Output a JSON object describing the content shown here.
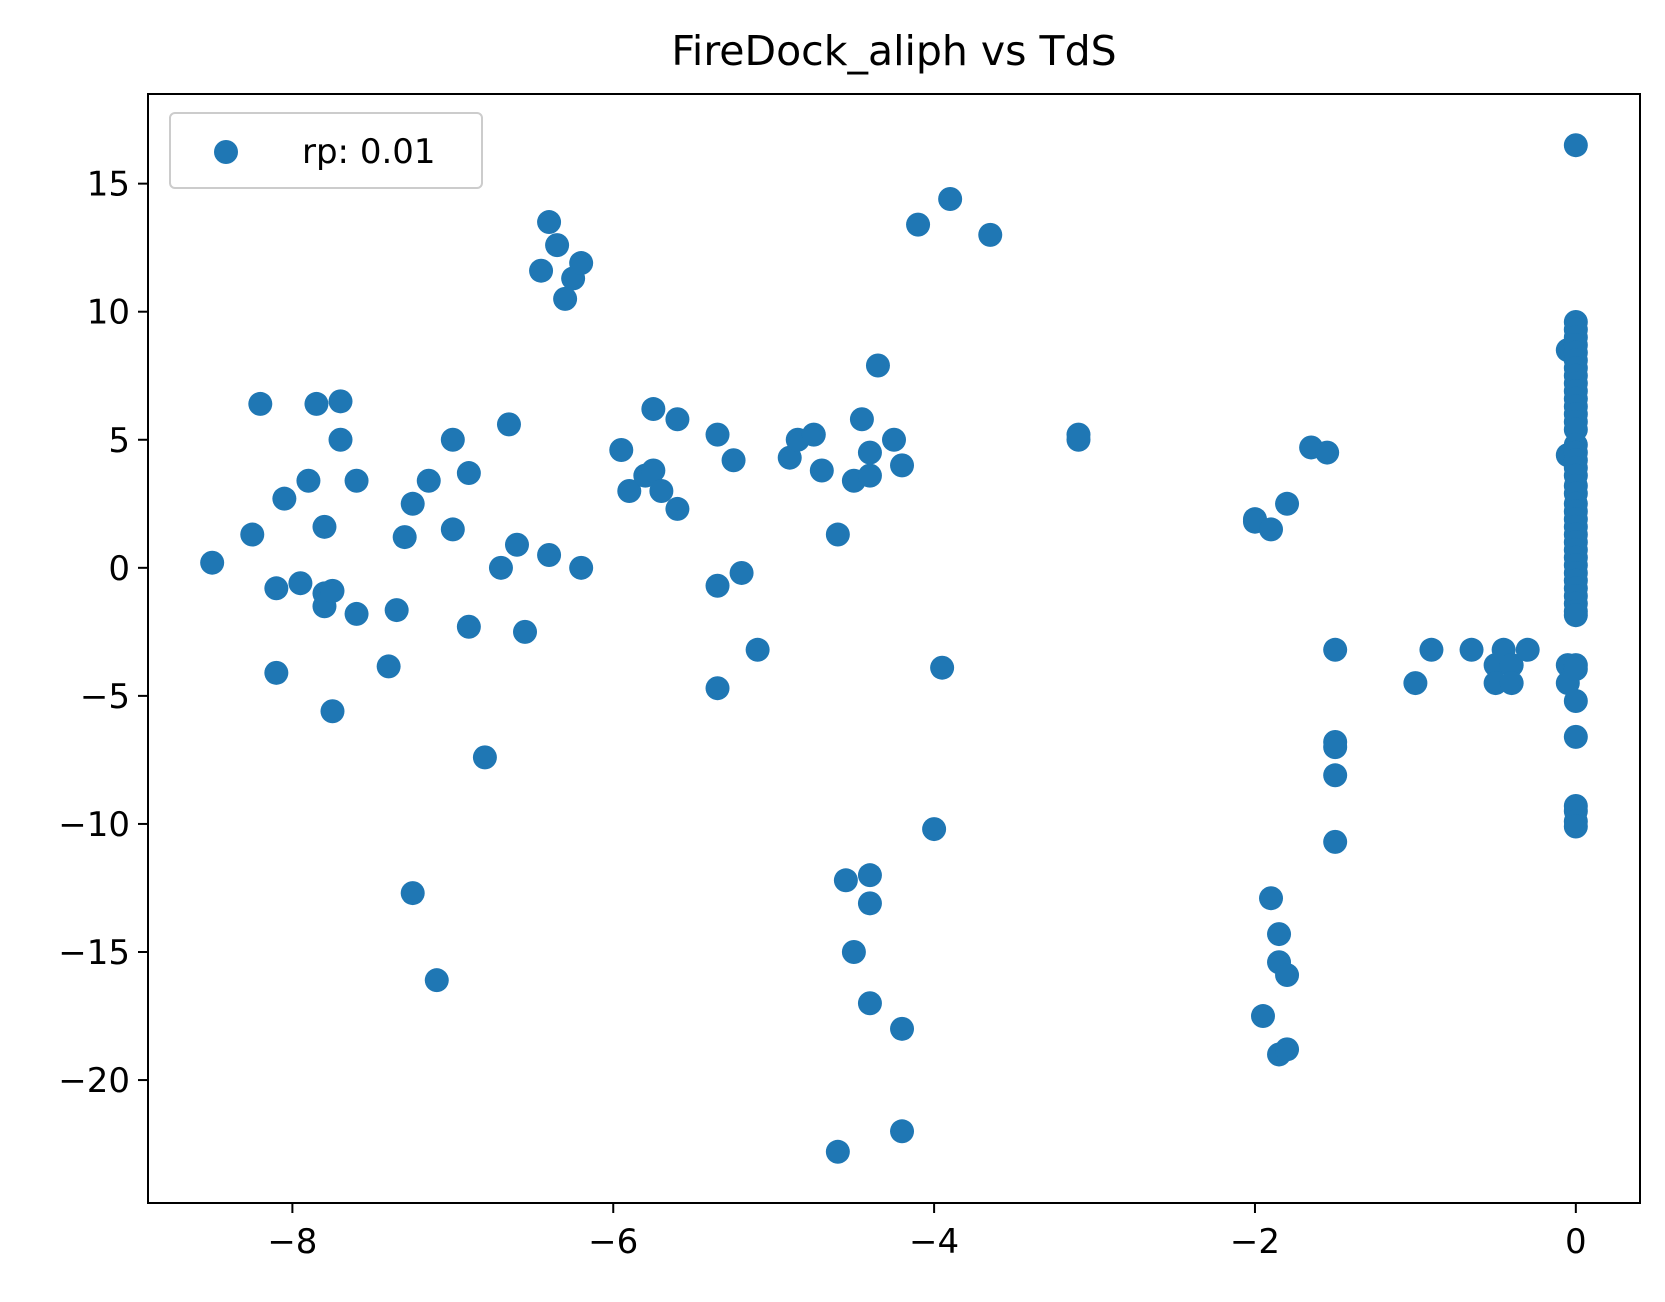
{
  "chart_data": {
    "type": "scatter",
    "title": "FireDock_aliph vs TdS",
    "xlabel": "",
    "ylabel": "",
    "xlim": [
      -8.9,
      0.4
    ],
    "ylim": [
      -24.8,
      18.5
    ],
    "x_ticks": [
      -8,
      -6,
      -4,
      -2,
      0
    ],
    "x_tick_labels": [
      "−8",
      "−6",
      "−4",
      "−2",
      "0"
    ],
    "y_ticks": [
      -20,
      -15,
      -10,
      -5,
      0,
      5,
      10,
      15
    ],
    "y_tick_labels": [
      "−20",
      "−15",
      "−10",
      "−5",
      "0",
      "5",
      "10",
      "15"
    ],
    "grid": false,
    "legend": {
      "position": "top-left",
      "label": "rp: 0.01"
    },
    "colors": {
      "points": "#1f77b4"
    },
    "series": [
      {
        "name": "rp: 0.01",
        "points": [
          [
            -8.5,
            0.2
          ],
          [
            -8.25,
            1.3
          ],
          [
            -8.2,
            6.4
          ],
          [
            -8.1,
            -0.8
          ],
          [
            -8.05,
            2.7
          ],
          [
            -8.1,
            -4.1
          ],
          [
            -7.95,
            -0.6
          ],
          [
            -7.9,
            3.4
          ],
          [
            -7.85,
            6.4
          ],
          [
            -7.8,
            -1.0
          ],
          [
            -7.8,
            1.6
          ],
          [
            -7.8,
            -1.5
          ],
          [
            -7.75,
            -0.9
          ],
          [
            -7.75,
            -5.6
          ],
          [
            -7.7,
            6.5
          ],
          [
            -7.7,
            5.0
          ],
          [
            -7.6,
            3.4
          ],
          [
            -7.6,
            -1.8
          ],
          [
            -7.4,
            -3.85
          ],
          [
            -7.35,
            -1.65
          ],
          [
            -7.3,
            1.2
          ],
          [
            -7.25,
            2.5
          ],
          [
            -7.15,
            3.4
          ],
          [
            -7.25,
            -12.7
          ],
          [
            -7.1,
            -16.1
          ],
          [
            -7.0,
            5.0
          ],
          [
            -7.0,
            1.5
          ],
          [
            -6.9,
            3.7
          ],
          [
            -6.9,
            -2.3
          ],
          [
            -6.8,
            -7.4
          ],
          [
            -6.7,
            0.0
          ],
          [
            -6.65,
            5.6
          ],
          [
            -6.6,
            0.9
          ],
          [
            -6.55,
            -2.5
          ],
          [
            -6.45,
            11.6
          ],
          [
            -6.4,
            0.5
          ],
          [
            -6.4,
            13.5
          ],
          [
            -6.35,
            12.6
          ],
          [
            -6.3,
            10.5
          ],
          [
            -6.25,
            11.3
          ],
          [
            -6.2,
            11.9
          ],
          [
            -6.2,
            0.0
          ],
          [
            -5.95,
            4.6
          ],
          [
            -5.9,
            3.0
          ],
          [
            -5.8,
            3.6
          ],
          [
            -5.75,
            6.2
          ],
          [
            -5.75,
            3.8
          ],
          [
            -5.7,
            3.0
          ],
          [
            -5.6,
            2.3
          ],
          [
            -5.6,
            5.8
          ],
          [
            -5.35,
            5.2
          ],
          [
            -5.35,
            -0.7
          ],
          [
            -5.35,
            -4.7
          ],
          [
            -5.25,
            4.2
          ],
          [
            -5.2,
            -0.2
          ],
          [
            -5.1,
            -3.2
          ],
          [
            -4.9,
            4.3
          ],
          [
            -4.85,
            5.0
          ],
          [
            -4.75,
            5.2
          ],
          [
            -4.7,
            3.8
          ],
          [
            -4.6,
            1.3
          ],
          [
            -4.55,
            -12.2
          ],
          [
            -4.5,
            3.4
          ],
          [
            -4.5,
            -15.0
          ],
          [
            -4.45,
            5.8
          ],
          [
            -4.4,
            3.6
          ],
          [
            -4.4,
            4.5
          ],
          [
            -4.4,
            -12.0
          ],
          [
            -4.4,
            -13.1
          ],
          [
            -4.4,
            -17.0
          ],
          [
            -4.35,
            7.9
          ],
          [
            -4.25,
            5.0
          ],
          [
            -4.2,
            4.0
          ],
          [
            -4.2,
            -18.0
          ],
          [
            -4.2,
            -22.0
          ],
          [
            -4.6,
            -22.8
          ],
          [
            -4.1,
            13.4
          ],
          [
            -4.0,
            -10.2
          ],
          [
            -3.95,
            -3.9
          ],
          [
            -3.9,
            14.4
          ],
          [
            -3.65,
            13.0
          ],
          [
            -3.1,
            5.2
          ],
          [
            -3.1,
            5.0
          ],
          [
            -2.0,
            1.9
          ],
          [
            -2.0,
            1.8
          ],
          [
            -1.9,
            1.5
          ],
          [
            -1.8,
            2.5
          ],
          [
            -1.9,
            -12.9
          ],
          [
            -1.85,
            -14.3
          ],
          [
            -1.85,
            -15.4
          ],
          [
            -1.8,
            -15.9
          ],
          [
            -1.95,
            -17.5
          ],
          [
            -1.85,
            -19.0
          ],
          [
            -1.8,
            -18.8
          ],
          [
            -1.65,
            4.7
          ],
          [
            -1.55,
            4.5
          ],
          [
            -1.5,
            -3.2
          ],
          [
            -1.5,
            -6.8
          ],
          [
            -1.5,
            -7.0
          ],
          [
            -1.5,
            -8.1
          ],
          [
            -1.5,
            -10.7
          ],
          [
            -1.0,
            -4.5
          ],
          [
            -0.9,
            -3.2
          ],
          [
            -0.65,
            -3.2
          ],
          [
            -0.5,
            -3.8
          ],
          [
            -0.5,
            -4.5
          ],
          [
            -0.45,
            -3.2
          ],
          [
            -0.4,
            -3.8
          ],
          [
            -0.4,
            -4.5
          ],
          [
            -0.3,
            -3.2
          ],
          [
            -0.05,
            8.5
          ],
          [
            -0.05,
            4.4
          ],
          [
            -0.05,
            -3.8
          ],
          [
            -0.05,
            -4.5
          ],
          [
            0.0,
            16.5
          ],
          [
            0.0,
            9.6
          ],
          [
            0.0,
            9.3
          ],
          [
            0.0,
            9.0
          ],
          [
            0.0,
            8.7
          ],
          [
            0.0,
            8.4
          ],
          [
            0.0,
            8.1
          ],
          [
            0.0,
            7.8
          ],
          [
            0.0,
            7.5
          ],
          [
            0.0,
            7.2
          ],
          [
            0.0,
            6.9
          ],
          [
            0.0,
            6.6
          ],
          [
            0.0,
            6.3
          ],
          [
            0.0,
            6.0
          ],
          [
            0.0,
            5.7
          ],
          [
            0.0,
            5.4
          ],
          [
            0.0,
            4.8
          ],
          [
            0.0,
            4.5
          ],
          [
            0.0,
            4.2
          ],
          [
            0.0,
            3.9
          ],
          [
            0.0,
            3.6
          ],
          [
            0.0,
            3.2
          ],
          [
            0.0,
            2.9
          ],
          [
            0.0,
            2.5
          ],
          [
            0.0,
            2.2
          ],
          [
            0.0,
            1.9
          ],
          [
            0.0,
            1.6
          ],
          [
            0.0,
            1.3
          ],
          [
            0.0,
            1.0
          ],
          [
            0.0,
            0.7
          ],
          [
            0.0,
            0.4
          ],
          [
            0.0,
            0.1
          ],
          [
            0.0,
            -0.2
          ],
          [
            0.0,
            -0.5
          ],
          [
            0.0,
            -0.8
          ],
          [
            0.0,
            -1.1
          ],
          [
            0.0,
            -1.4
          ],
          [
            0.0,
            -1.7
          ],
          [
            0.0,
            -1.85
          ],
          [
            0.0,
            -3.8
          ],
          [
            0.0,
            -3.95
          ],
          [
            0.0,
            -5.2
          ],
          [
            0.0,
            -6.6
          ],
          [
            0.0,
            -9.3
          ],
          [
            0.0,
            -9.5
          ],
          [
            0.0,
            -9.9
          ],
          [
            0.0,
            -10.1
          ]
        ]
      }
    ]
  }
}
